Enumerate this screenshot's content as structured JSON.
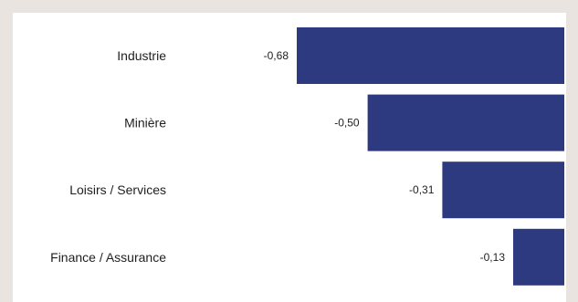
{
  "chart_data": {
    "type": "bar",
    "orientation": "horizontal",
    "title": "",
    "xlabel": "",
    "ylabel": "",
    "categories": [
      "Industrie",
      "Minière",
      "Loisirs / Services",
      "Finance / Assurance"
    ],
    "values": [
      -0.68,
      -0.5,
      -0.31,
      -0.13
    ],
    "value_labels": [
      "-0,68",
      "-0,50",
      "-0,31",
      "-0,13"
    ],
    "xlim": [
      -0.68,
      0
    ],
    "bar_color": "#2e3a7f",
    "grid": false,
    "legend": "none"
  }
}
